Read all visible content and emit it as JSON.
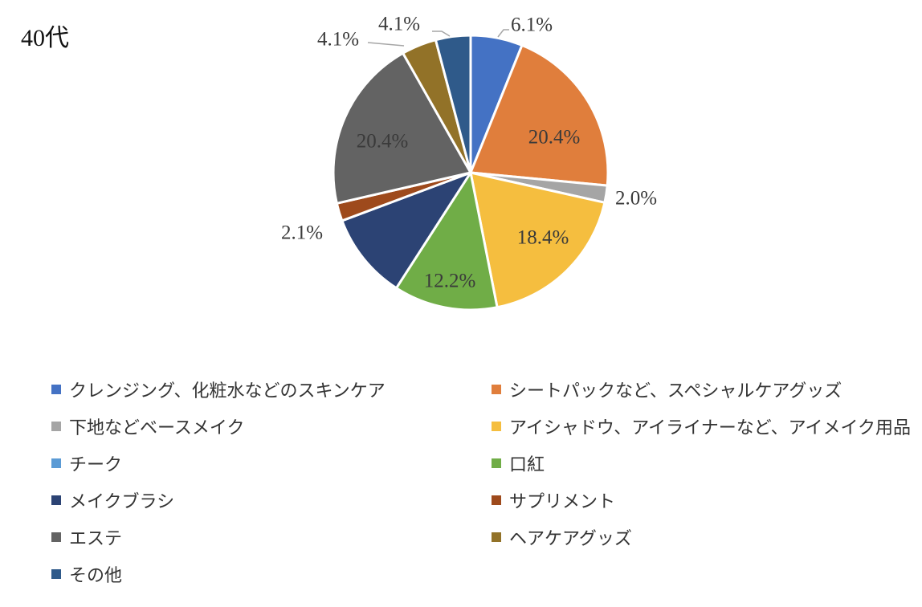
{
  "chart_data": {
    "type": "pie",
    "title": "40代",
    "slices": [
      {
        "name": "クレンジング、化粧水などのスキンケア",
        "value": 6.1,
        "label": "6.1%",
        "color": "#4472C4"
      },
      {
        "name": "シートパックなど、スペシャルケアグッズ",
        "value": 20.4,
        "label": "20.4%",
        "color": "#E07E3C"
      },
      {
        "name": "下地などベースメイク",
        "value": 2.0,
        "label": "2.0%",
        "color": "#A5A5A5"
      },
      {
        "name": "アイシャドウ、アイライナーなど、アイメイク用品",
        "value": 18.4,
        "label": "18.4%",
        "color": "#F5BE3F"
      },
      {
        "name": "チーク",
        "value": 0,
        "label": "",
        "color": "#5B9BD5"
      },
      {
        "name": "口紅",
        "value": 12.2,
        "label": "12.2%",
        "color": "#70AD47"
      },
      {
        "name": "メイクブラシ",
        "value": 10.2,
        "label": "",
        "color": "#2C4374"
      },
      {
        "name": "サプリメント",
        "value": 2.1,
        "label": "2.1%",
        "color": "#9E4A1C"
      },
      {
        "name": "エステ",
        "value": 20.4,
        "label": "20.4%",
        "color": "#636363"
      },
      {
        "name": "ヘアケアグッズ",
        "value": 4.1,
        "label": "4.1%",
        "color": "#927228"
      },
      {
        "name": "その他",
        "value": 4.1,
        "label": "4.1%",
        "color": "#2F5A8A"
      }
    ],
    "legend_position": "bottom"
  }
}
